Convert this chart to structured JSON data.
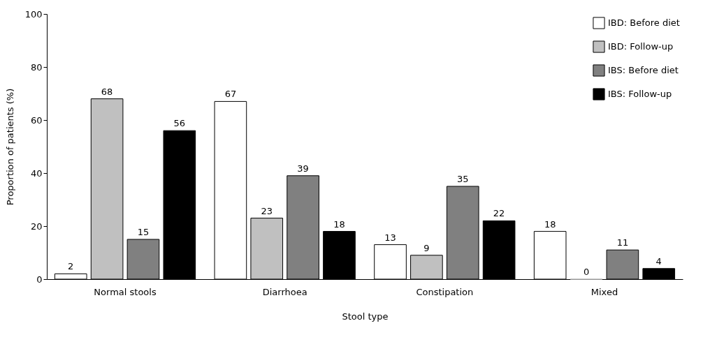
{
  "chart_data": {
    "type": "bar",
    "xlabel": "Stool type",
    "ylabel": "Proportion of patients (%)",
    "categories": [
      "Normal stools",
      "Diarrhoea",
      "Constipation",
      "Mixed"
    ],
    "series": [
      {
        "name": "IBD: Before diet",
        "color": "#ffffff",
        "values": [
          2,
          67,
          13,
          18
        ]
      },
      {
        "name": "IBD: Follow-up",
        "color": "#c0c0c0",
        "values": [
          68,
          23,
          9,
          0
        ]
      },
      {
        "name": "IBS: Before diet",
        "color": "#808080",
        "values": [
          15,
          39,
          35,
          11
        ]
      },
      {
        "name": "IBS: Follow-up",
        "color": "#000000",
        "values": [
          56,
          18,
          22,
          4
        ]
      }
    ],
    "ylim": [
      0,
      100
    ],
    "yticks": [
      0,
      20,
      40,
      60,
      80,
      100
    ],
    "grid": false,
    "legend": "top right",
    "data_labels": true
  }
}
